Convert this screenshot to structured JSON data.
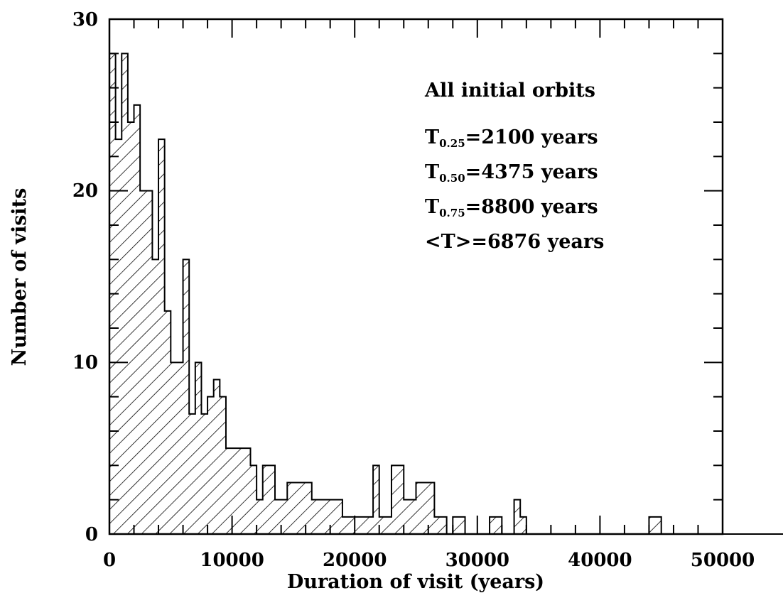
{
  "chart_data": {
    "type": "bar",
    "subtype": "histogram",
    "xlabel": "Duration of visit (years)",
    "ylabel": "Number of visits",
    "xlim": [
      0,
      50000
    ],
    "ylim": [
      0,
      30
    ],
    "x_ticks": [
      "0",
      "10000",
      "20000",
      "30000",
      "40000",
      "50000"
    ],
    "y_ticks": [
      "0",
      "10",
      "20",
      "30"
    ],
    "bin_width": 500,
    "series": [
      {
        "values": [
          28,
          23,
          28,
          24,
          25,
          20,
          20,
          16,
          23,
          13,
          10,
          10,
          16,
          7,
          10,
          7,
          8,
          9,
          8,
          5,
          5,
          5,
          5,
          4,
          2,
          4,
          4,
          2,
          2,
          3,
          3,
          3,
          3,
          2,
          2,
          2,
          2,
          2,
          1,
          1,
          1,
          1,
          1,
          4,
          1,
          1,
          4,
          4,
          2,
          2,
          3,
          3,
          3,
          1,
          1,
          0,
          1,
          1,
          0,
          0,
          0,
          0,
          1,
          1,
          0,
          0,
          2,
          1,
          0,
          0,
          0,
          0,
          0,
          0,
          0,
          0,
          0,
          0,
          0,
          0,
          0,
          0,
          0,
          0,
          0,
          0,
          0,
          0,
          1,
          1,
          0,
          0,
          0,
          0,
          0,
          0,
          0,
          0,
          0,
          0,
          0,
          0,
          0,
          0,
          0,
          0,
          0,
          0,
          0,
          0,
          0,
          0,
          0,
          0,
          0,
          0,
          0,
          0,
          0,
          0,
          0,
          0,
          0,
          0,
          0,
          0,
          0,
          0,
          0,
          0,
          0,
          0,
          0,
          0,
          0,
          0,
          0,
          0,
          0,
          0,
          0,
          0,
          0,
          0,
          0,
          0,
          0,
          0,
          0,
          0,
          0,
          0,
          0,
          0,
          0,
          0,
          0,
          0,
          0,
          0,
          0,
          0,
          0,
          0,
          0,
          0,
          0,
          0,
          0,
          0,
          0,
          0,
          0,
          0,
          0,
          0,
          0,
          0,
          0,
          0,
          0,
          0,
          0,
          0,
          0,
          0,
          0,
          0,
          0,
          0,
          0,
          0,
          0,
          0,
          0,
          0,
          0,
          0,
          0,
          0,
          0,
          0,
          0,
          0,
          0,
          0,
          0,
          0,
          0,
          0,
          0,
          0,
          0,
          0,
          0,
          0,
          0,
          0,
          0,
          0,
          0,
          0,
          0,
          0,
          0,
          0,
          0,
          0,
          0,
          0,
          0,
          0,
          0,
          0,
          0,
          0,
          0,
          0,
          0,
          0,
          0,
          0,
          0,
          0,
          0,
          0,
          0,
          0,
          0,
          0,
          0,
          0,
          0,
          0,
          0,
          0,
          0,
          0,
          0,
          0,
          0,
          0,
          0,
          0
        ]
      }
    ],
    "annotations": {
      "title": "All initial orbits",
      "lines": [
        {
          "sym": "T",
          "sub": "0.25",
          "rest": "=2100 years"
        },
        {
          "sym": "T",
          "sub": "0.50",
          "rest": "=4375 years"
        },
        {
          "sym": "T",
          "sub": "0.75",
          "rest": "=8800 years"
        },
        {
          "sym": "<T>",
          "sub": "",
          "rest": "=6876 years"
        }
      ]
    },
    "fill": "diagonal-hatch",
    "grid": false
  }
}
